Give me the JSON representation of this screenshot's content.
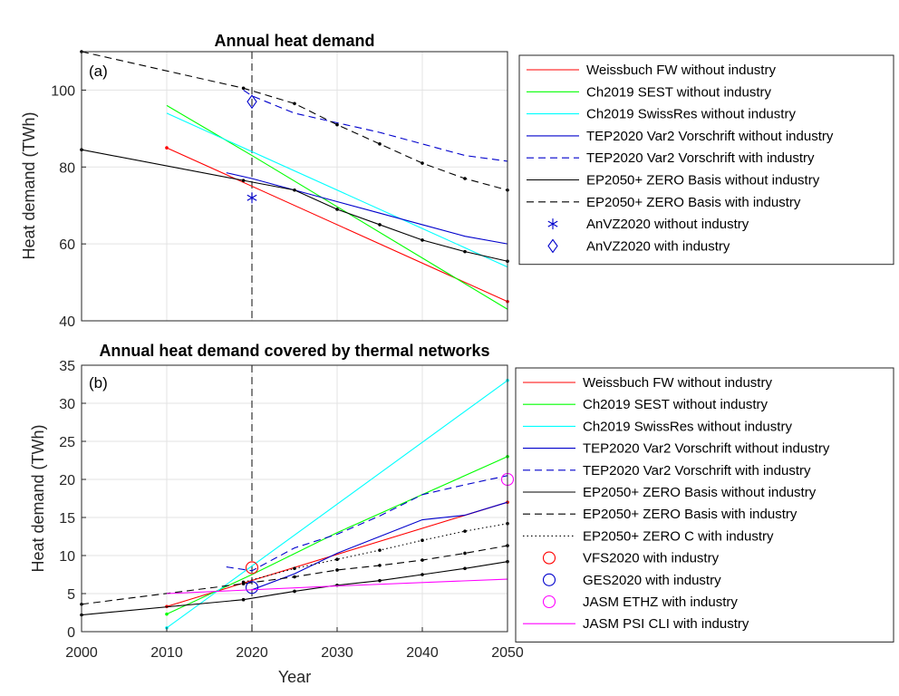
{
  "chart_data": [
    {
      "type": "line",
      "panel_label": "(a)",
      "title": "Annual heat demand",
      "xlabel": "",
      "ylabel": "Heat demand (TWh)",
      "xlim": [
        2000,
        2050
      ],
      "ylim": [
        40,
        110
      ],
      "xticks": [],
      "yticks": [
        40,
        60,
        80,
        100
      ],
      "grid": true,
      "vline_x": 2020,
      "legend": "outside-right",
      "series": [
        {
          "name": "Weissbuch FW without industry",
          "color": "#ff0000",
          "dash": "solid",
          "markers": "ends",
          "x": [
            2010,
            2050
          ],
          "y": [
            85,
            45
          ]
        },
        {
          "name": "Ch2019 SEST without industry",
          "color": "#00ff00",
          "dash": "solid",
          "markers": "none",
          "x": [
            2010,
            2020,
            2050
          ],
          "y": [
            96,
            83,
            43
          ]
        },
        {
          "name": "Ch2019 SwissRes without industry",
          "color": "#00ffff",
          "dash": "solid",
          "markers": "none",
          "x": [
            2010,
            2017,
            2050
          ],
          "y": [
            94,
            87,
            54
          ]
        },
        {
          "name": "TEP2020 Var2 Vorschrift without industry",
          "color": "#0000cc",
          "dash": "solid",
          "markers": "none",
          "x": [
            2017,
            2020,
            2025,
            2030,
            2035,
            2040,
            2045,
            2050
          ],
          "y": [
            78.5,
            77,
            74,
            71,
            68,
            65,
            62,
            60
          ]
        },
        {
          "name": "TEP2020 Var2 Vorschrift with industry",
          "color": "#0000cc",
          "dash": "dashed",
          "markers": "none",
          "x": [
            2019,
            2020,
            2025,
            2030,
            2035,
            2040,
            2045,
            2050
          ],
          "y": [
            100,
            98.5,
            94,
            91.5,
            89,
            86,
            83,
            81.5
          ]
        },
        {
          "name": "EP2050+ ZERO Basis without industry",
          "color": "#000000",
          "dash": "solid",
          "markers": "dots",
          "x": [
            2000,
            2019,
            2025,
            2030,
            2035,
            2040,
            2045,
            2050
          ],
          "y": [
            84.5,
            76.5,
            74,
            69,
            65,
            61,
            58,
            55.5
          ]
        },
        {
          "name": "EP2050+ ZERO Basis with industry",
          "color": "#000000",
          "dash": "dashed",
          "markers": "dots",
          "x": [
            2000,
            2019,
            2025,
            2030,
            2035,
            2040,
            2045,
            2050
          ],
          "y": [
            110,
            100.5,
            96.5,
            91,
            86,
            81,
            77,
            74
          ]
        },
        {
          "name": "AnVZ2020 without industry",
          "color": "#0000cc",
          "marker": "asterisk",
          "x": [
            2020
          ],
          "y": [
            72
          ]
        },
        {
          "name": "AnVZ2020 with industry",
          "color": "#0000cc",
          "marker": "diamond",
          "x": [
            2020
          ],
          "y": [
            97
          ]
        }
      ]
    },
    {
      "type": "line",
      "panel_label": "(b)",
      "title": "Annual heat demand covered by thermal networks",
      "xlabel": "Year",
      "ylabel": "Heat demand (TWh)",
      "xlim": [
        2000,
        2050
      ],
      "ylim": [
        0,
        35
      ],
      "xticks": [
        2000,
        2010,
        2020,
        2030,
        2040,
        2050
      ],
      "yticks": [
        0,
        5,
        10,
        15,
        20,
        25,
        30,
        35
      ],
      "grid": true,
      "vline_x": 2020,
      "legend": "outside-right",
      "series": [
        {
          "name": "Weissbuch FW without industry",
          "color": "#ff0000",
          "dash": "solid",
          "markers": "ends",
          "x": [
            2010,
            2050
          ],
          "y": [
            3.3,
            17
          ]
        },
        {
          "name": "Ch2019 SEST without industry",
          "color": "#00ff00",
          "dash": "solid",
          "markers": "ends",
          "x": [
            2010,
            2020,
            2030,
            2040,
            2050
          ],
          "y": [
            2.3,
            7.5,
            13,
            18,
            23
          ]
        },
        {
          "name": "Ch2019 SwissRes without industry",
          "color": "#00ffff",
          "dash": "solid",
          "markers": "ends",
          "x": [
            2010,
            2050
          ],
          "y": [
            0.5,
            33
          ]
        },
        {
          "name": "TEP2020 Var2 Vorschrift without industry",
          "color": "#0000cc",
          "dash": "solid",
          "markers": "none",
          "x": [
            2020,
            2025,
            2030,
            2035,
            2040,
            2045,
            2050
          ],
          "y": [
            5.5,
            7.6,
            10.3,
            12.5,
            14.7,
            15.3,
            17
          ]
        },
        {
          "name": "TEP2020 Var2 Vorschrift with industry",
          "color": "#0000cc",
          "dash": "dashed",
          "markers": "none",
          "x": [
            2017,
            2020,
            2025,
            2030,
            2035,
            2040,
            2045,
            2050
          ],
          "y": [
            8.5,
            8,
            11,
            12.8,
            15.2,
            18,
            19.3,
            20.5
          ]
        },
        {
          "name": "EP2050+ ZERO Basis without industry",
          "color": "#000000",
          "dash": "solid",
          "markers": "dots",
          "x": [
            2000,
            2019,
            2025,
            2030,
            2035,
            2040,
            2045,
            2050
          ],
          "y": [
            2.2,
            4.2,
            5.3,
            6.1,
            6.7,
            7.5,
            8.3,
            9.2
          ]
        },
        {
          "name": "EP2050+ ZERO Basis with industry",
          "color": "#000000",
          "dash": "dashed",
          "markers": "dots",
          "x": [
            2000,
            2019,
            2025,
            2030,
            2035,
            2040,
            2045,
            2050
          ],
          "y": [
            3.6,
            6.3,
            7.2,
            8.1,
            8.7,
            9.4,
            10.3,
            11.3
          ]
        },
        {
          "name": "EP2050+ ZERO C with industry",
          "color": "#000000",
          "dash": "dotted",
          "markers": "dots",
          "x": [
            2019,
            2025,
            2030,
            2035,
            2040,
            2045,
            2050
          ],
          "y": [
            6.5,
            8.3,
            9.5,
            10.7,
            12,
            13.2,
            14.2
          ]
        },
        {
          "name": "VFS2020 with industry",
          "color": "#ff0000",
          "marker": "circle",
          "x": [
            2020
          ],
          "y": [
            8.4
          ]
        },
        {
          "name": "GES2020 with industry",
          "color": "#0000cc",
          "marker": "circle",
          "x": [
            2020
          ],
          "y": [
            5.8
          ]
        },
        {
          "name": "JASM ETHZ with industry",
          "color": "#ff00ff",
          "marker": "circle",
          "x": [
            2050
          ],
          "y": [
            20
          ]
        },
        {
          "name": "JASM PSI CLI with industry",
          "color": "#ff00ff",
          "dash": "solid",
          "markers": "none",
          "x": [
            2010,
            2030,
            2050
          ],
          "y": [
            5,
            6,
            6.9
          ]
        }
      ]
    }
  ]
}
